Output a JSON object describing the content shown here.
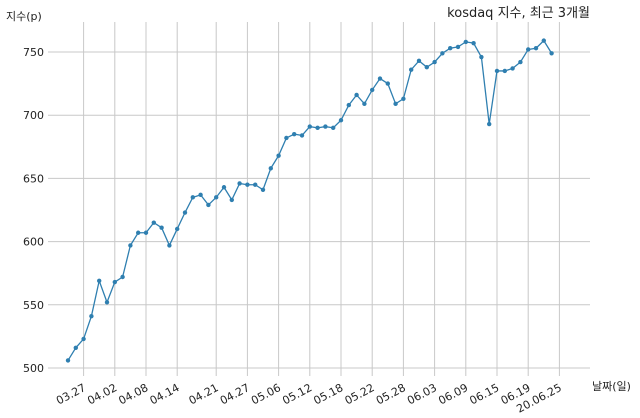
{
  "chart_data": {
    "type": "line",
    "title": "kosdaq 지수, 최근 3개월",
    "xlabel": "날짜(일)",
    "ylabel": "지수(p)",
    "ylim": [
      500,
      760
    ],
    "yticks": [
      500,
      550,
      600,
      650,
      700,
      750
    ],
    "grid": true,
    "line_color": "#2f7fb0",
    "xtick_labels": [
      {
        "label": "03.27",
        "index": 2
      },
      {
        "label": "04.02",
        "index": 6
      },
      {
        "label": "04.08",
        "index": 10
      },
      {
        "label": "04.14",
        "index": 14
      },
      {
        "label": "04.21",
        "index": 19
      },
      {
        "label": "04.27",
        "index": 23
      },
      {
        "label": "05.06",
        "index": 27
      },
      {
        "label": "05.12",
        "index": 31
      },
      {
        "label": "05.18",
        "index": 35
      },
      {
        "label": "05.22",
        "index": 39
      },
      {
        "label": "05.28",
        "index": 43
      },
      {
        "label": "06.03",
        "index": 47
      },
      {
        "label": "06.09",
        "index": 51
      },
      {
        "label": "06.15",
        "index": 55
      },
      {
        "label": "06.19",
        "index": 59
      },
      {
        "label": "20.06.25",
        "index": 63
      }
    ],
    "series": [
      {
        "values": [
          506,
          516,
          523,
          541,
          569,
          552,
          568,
          572,
          597,
          607,
          607,
          615,
          611,
          597,
          610,
          623,
          635,
          637,
          629,
          635,
          643,
          633,
          646,
          645,
          645,
          641,
          658,
          668,
          682,
          685,
          684,
          691,
          690,
          691,
          690,
          696,
          708,
          716,
          709,
          720,
          729,
          725,
          709,
          713,
          736,
          743,
          738,
          742,
          749,
          753,
          754,
          758,
          757,
          746,
          693,
          735,
          735,
          737,
          742,
          752,
          753,
          759,
          749
        ]
      }
    ]
  }
}
